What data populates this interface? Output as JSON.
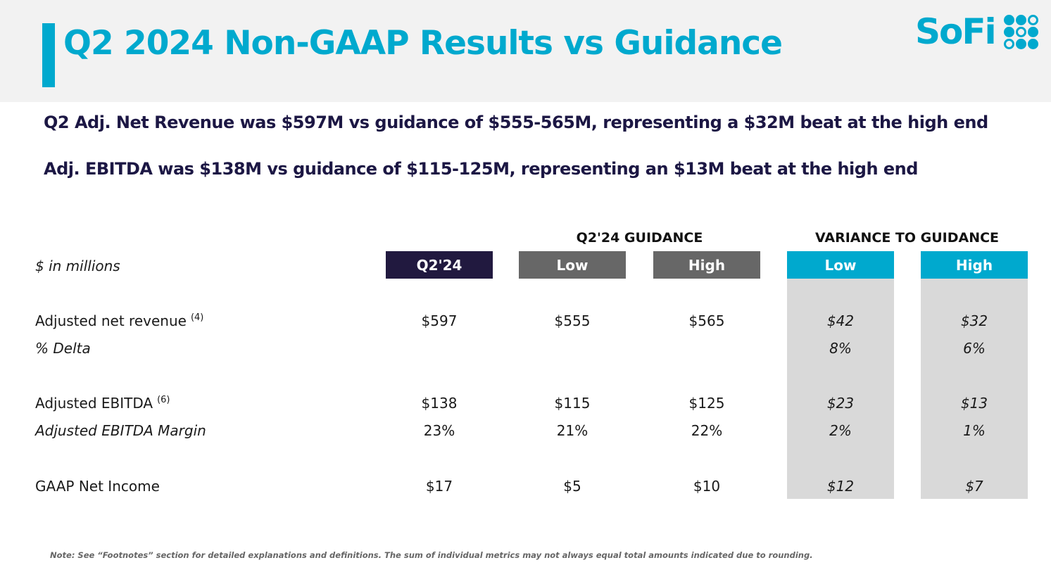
{
  "title": "Q2 2024 Non-GAAP Results vs Guidance",
  "logo": {
    "text": "SoFi",
    "color": "#00a9ce"
  },
  "headlines": [
    "Q2 Adj. Net Revenue was $597M vs guidance of $555-565M, representing a $32M beat at the high end",
    "Adj. EBITDA was $138M vs guidance of $115-125M, representing an $13M beat at the high end"
  ],
  "table": {
    "unit_label": "$ in millions",
    "group_guidance": "Q2'24 GUIDANCE",
    "group_variance": "VARIANCE TO GUIDANCE",
    "columns": [
      "Q2'24",
      "Low",
      "High",
      "Low",
      "High"
    ],
    "column_colors": [
      "#21193f",
      "#676767",
      "#676767",
      "#00a9ce",
      "#00a9ce"
    ],
    "rows": [
      {
        "label": "Adjusted net revenue",
        "footnote": "(4)",
        "italic": false,
        "values": [
          "$597",
          "$555",
          "$565",
          "$42",
          "$32"
        ]
      },
      {
        "label": "% Delta",
        "footnote": "",
        "italic": true,
        "values": [
          "",
          "",
          "",
          "8%",
          "6%"
        ]
      },
      {
        "label": "Adjusted EBITDA",
        "footnote": "(6)",
        "italic": false,
        "values": [
          "$138",
          "$115",
          "$125",
          "$23",
          "$13"
        ]
      },
      {
        "label": "Adjusted EBITDA Margin",
        "footnote": "",
        "italic": true,
        "values": [
          "23%",
          "21%",
          "22%",
          "2%",
          "1%"
        ]
      },
      {
        "label": "GAAP Net Income",
        "footnote": "",
        "italic": false,
        "values": [
          "$17",
          "$5",
          "$10",
          "$12",
          "$7"
        ]
      }
    ]
  },
  "note": "Note: See “Footnotes” section for detailed explanations and definitions. The sum of individual metrics may not always equal total amounts indicated due to rounding."
}
